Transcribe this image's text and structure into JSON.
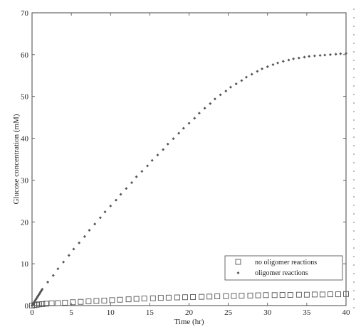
{
  "chart_data": {
    "type": "scatter",
    "title": "",
    "xlabel": "Time (hr)",
    "ylabel": "Glucose concentration (mM)",
    "xlim": [
      0,
      40
    ],
    "ylim": [
      0,
      70
    ],
    "xticks": [
      0,
      5,
      10,
      15,
      20,
      25,
      30,
      35,
      40
    ],
    "yticks": [
      0,
      10,
      20,
      30,
      40,
      50,
      60,
      70
    ],
    "grid": false,
    "legend_position": "bottom-right",
    "series": [
      {
        "name": "no oligomer reactions",
        "marker": "square",
        "color": "#555555",
        "x": [
          0,
          0.3,
          0.6,
          0.9,
          1.3,
          1.8,
          2.5,
          3.3,
          4.2,
          5.2,
          6.2,
          7.2,
          8.2,
          9.2,
          10.2,
          11.2,
          12.3,
          13.3,
          14.3,
          15.4,
          16.4,
          17.4,
          18.5,
          19.5,
          20.5,
          21.6,
          22.6,
          23.6,
          24.7,
          25.7,
          26.7,
          27.8,
          28.8,
          29.8,
          30.9,
          31.9,
          32.9,
          34.0,
          35.0,
          36.0,
          37.0,
          38.0,
          39.0,
          40.0
        ],
        "y": [
          0,
          0.1,
          0.2,
          0.3,
          0.35,
          0.45,
          0.55,
          0.6,
          0.7,
          0.8,
          0.9,
          1.0,
          1.1,
          1.2,
          1.3,
          1.4,
          1.5,
          1.6,
          1.7,
          1.75,
          1.85,
          1.9,
          1.95,
          2.0,
          2.05,
          2.1,
          2.15,
          2.2,
          2.25,
          2.3,
          2.35,
          2.4,
          2.45,
          2.5,
          2.5,
          2.55,
          2.55,
          2.6,
          2.6,
          2.65,
          2.65,
          2.7,
          2.7,
          2.75
        ]
      },
      {
        "name": "oligomer reactions",
        "marker": "diamond",
        "color": "#555555",
        "x": [
          0,
          0.1,
          0.2,
          0.3,
          0.4,
          0.5,
          0.6,
          0.7,
          0.8,
          0.9,
          1.0,
          1.1,
          1.2,
          1.3,
          2.0,
          2.7,
          3.3,
          4.0,
          4.7,
          5.3,
          6.0,
          6.7,
          7.3,
          8.0,
          8.7,
          9.3,
          10.0,
          10.7,
          11.3,
          12.0,
          12.7,
          13.3,
          14.0,
          14.7,
          15.3,
          16.0,
          16.7,
          17.3,
          18.0,
          18.7,
          19.3,
          20.0,
          20.7,
          21.3,
          22.0,
          22.7,
          23.3,
          24.0,
          24.7,
          25.3,
          26.0,
          26.7,
          27.3,
          28.0,
          28.7,
          29.3,
          30.0,
          30.7,
          31.3,
          32.0,
          32.7,
          33.3,
          34.0,
          34.7,
          35.3,
          36.0,
          36.7,
          37.3,
          38.0,
          38.7,
          39.3,
          40.0
        ],
        "y": [
          0,
          0.3,
          0.6,
          0.9,
          1.2,
          1.5,
          1.8,
          2.1,
          2.4,
          2.7,
          3.0,
          3.3,
          3.6,
          3.9,
          5.6,
          7.2,
          8.8,
          10.4,
          12.0,
          13.5,
          15.0,
          16.5,
          18.0,
          19.5,
          21.0,
          22.4,
          23.8,
          25.2,
          26.6,
          28.0,
          29.4,
          30.8,
          32.1,
          33.4,
          34.7,
          36.0,
          37.3,
          38.6,
          39.9,
          41.2,
          42.4,
          43.6,
          44.8,
          46.0,
          47.2,
          48.3,
          49.4,
          50.4,
          51.3,
          52.2,
          53.0,
          53.8,
          54.6,
          55.3,
          56.0,
          56.6,
          57.1,
          57.6,
          58.0,
          58.4,
          58.7,
          59.0,
          59.2,
          59.4,
          59.6,
          59.7,
          59.8,
          59.9,
          60.0,
          60.1,
          60.2,
          60.3
        ]
      }
    ]
  }
}
